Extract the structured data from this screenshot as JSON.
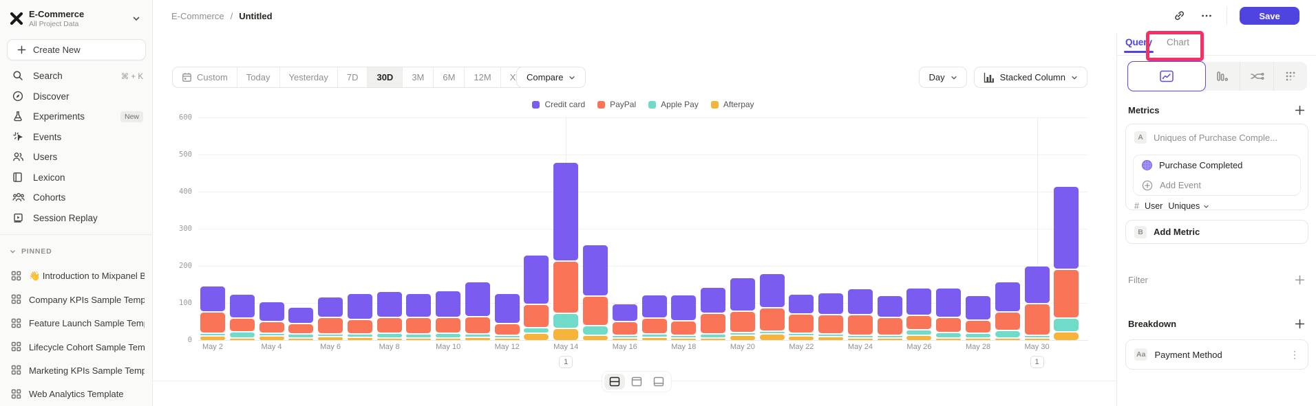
{
  "sidebar": {
    "project_name": "E-Commerce",
    "project_subtitle": "All Project Data",
    "create_new_label": "Create New",
    "items": [
      {
        "label": "Search",
        "icon": "search",
        "shortcut": "⌘ + K"
      },
      {
        "label": "Discover",
        "icon": "compass"
      },
      {
        "label": "Experiments",
        "icon": "flask",
        "badge": "New"
      },
      {
        "label": "Events",
        "icon": "spark"
      },
      {
        "label": "Users",
        "icon": "users"
      },
      {
        "label": "Lexicon",
        "icon": "book"
      },
      {
        "label": "Cohorts",
        "icon": "cohorts"
      },
      {
        "label": "Session Replay",
        "icon": "replay"
      }
    ],
    "pinned_header": "PINNED",
    "pinned_items": [
      "👋 Introduction to Mixpanel Bo",
      "Company KPIs Sample Templat",
      "Feature Launch Sample Templa",
      "Lifecycle Cohort Sample Temp",
      "Marketing KPIs Sample Templat",
      "Web Analytics Template"
    ]
  },
  "header": {
    "breadcrumb_project": "E-Commerce",
    "breadcrumb_separator": "/",
    "breadcrumb_page": "Untitled",
    "save_label": "Save"
  },
  "toolbar": {
    "date_ranges": [
      "Custom",
      "Today",
      "Yesterday",
      "7D",
      "30D",
      "3M",
      "6M",
      "12M",
      "XTD"
    ],
    "active_range": "30D",
    "compare_label": "Compare",
    "granularity_label": "Day",
    "chart_type_label": "Stacked Column"
  },
  "right_panel": {
    "query_tab": "Query",
    "chart_tab": "Chart",
    "metrics_title": "Metrics",
    "metric_a": {
      "badge": "A",
      "summary": "Uniques of Purchase Comple...",
      "event_name": "Purchase Completed",
      "add_event_label": "Add Event",
      "hash": "#",
      "entity": "User",
      "aggregation": "Uniques"
    },
    "metric_b": {
      "badge": "B",
      "label": "Add Metric"
    },
    "filter_label": "Filter",
    "breakdown_label": "Breakdown",
    "breakdown_item": {
      "badge": "Aa",
      "label": "Payment Method"
    }
  },
  "annotation_highlight": {
    "color": "#f23267",
    "target": "Chart tab"
  },
  "chart_data": {
    "type": "bar",
    "stacked": true,
    "title": "",
    "xlabel": "",
    "ylabel": "",
    "ylim": [
      0,
      600
    ],
    "yticks": [
      0,
      100,
      200,
      300,
      400,
      500,
      600
    ],
    "grid": true,
    "legend_position": "top-center",
    "x": [
      "May 2",
      "May 3",
      "May 4",
      "May 5",
      "May 6",
      "May 7",
      "May 8",
      "May 9",
      "May 10",
      "May 11",
      "May 12",
      "May 13",
      "May 14",
      "May 15",
      "May 16",
      "May 17",
      "May 18",
      "May 19",
      "May 20",
      "May 21",
      "May 22",
      "May 23",
      "May 24",
      "May 25",
      "May 26",
      "May 27",
      "May 28",
      "May 29",
      "May 30",
      "May 31"
    ],
    "x_tick_labels": [
      "May 2",
      "May 4",
      "May 6",
      "May 8",
      "May 10",
      "May 12",
      "May 14",
      "May 16",
      "May 18",
      "May 20",
      "May 22",
      "May 24",
      "May 26",
      "May 28",
      "May 30"
    ],
    "series": [
      {
        "name": "Afterpay",
        "color": "#f6b43b",
        "values": [
          13,
          6,
          13,
          8,
          12,
          10,
          8,
          5,
          6,
          10,
          4,
          21,
          34,
          14,
          8,
          10,
          6,
          8,
          14,
          18,
          13,
          12,
          8,
          6,
          14,
          5,
          6,
          8,
          8,
          25
        ]
      },
      {
        "name": "Apple Pay",
        "color": "#71dbca",
        "values": [
          8,
          16,
          5,
          10,
          7,
          9,
          13,
          12,
          13,
          8,
          6,
          15,
          40,
          26,
          6,
          8,
          8,
          10,
          8,
          6,
          5,
          5,
          6,
          8,
          15,
          15,
          13,
          20,
          6,
          36
        ]
      },
      {
        "name": "PayPal",
        "color": "#fa7457",
        "values": [
          57,
          38,
          31,
          28,
          43,
          38,
          42,
          44,
          43,
          46,
          32,
          62,
          141,
          80,
          36,
          43,
          39,
          57,
          57,
          63,
          52,
          51,
          55,
          47,
          40,
          41,
          35,
          49,
          85,
          132
        ]
      },
      {
        "name": "Credit card",
        "color": "#7a5cf0",
        "values": [
          71,
          65,
          54,
          45,
          56,
          71,
          71,
          64,
          72,
          95,
          81,
          133,
          266,
          139,
          48,
          64,
          70,
          69,
          91,
          94,
          53,
          60,
          70,
          59,
          74,
          80,
          66,
          82,
          101,
          223
        ]
      }
    ],
    "legend_order": [
      "Credit card",
      "PayPal",
      "Apple Pay",
      "Afterpay"
    ],
    "annotations": [
      {
        "x": "May 14",
        "label": "1"
      },
      {
        "x": "May 30",
        "label": "1"
      }
    ]
  }
}
